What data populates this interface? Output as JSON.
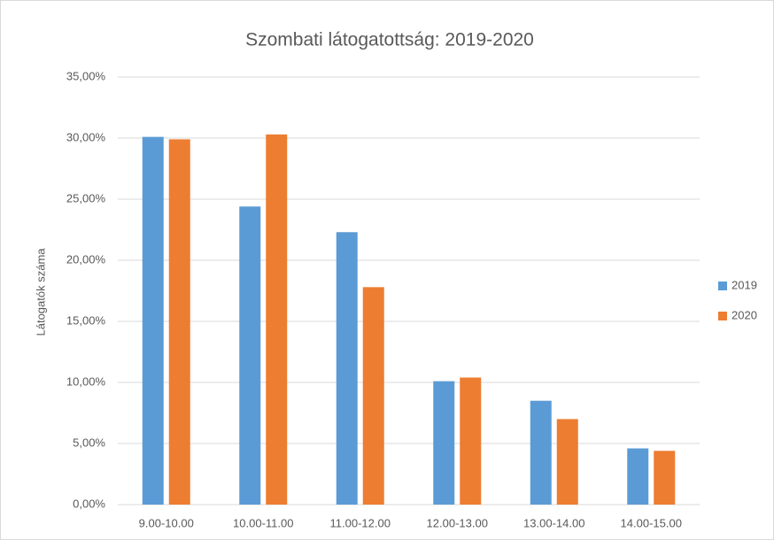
{
  "chart_data": {
    "type": "bar",
    "title": "Szombati látogatottság: 2019-2020",
    "y_label": "Látogatók száma",
    "categories": [
      "9.00-10.00",
      "10.00-11.00",
      "11.00-12.00",
      "12.00-13.00",
      "13.00-14.00",
      "14.00-15.00"
    ],
    "series": [
      {
        "name": "2019",
        "color": "#5b9bd5",
        "values": [
          30.1,
          24.4,
          22.3,
          10.1,
          8.5,
          4.6
        ]
      },
      {
        "name": "2020",
        "color": "#ed7d31",
        "values": [
          29.9,
          30.3,
          17.8,
          10.4,
          7.0,
          4.4
        ]
      }
    ],
    "ylim": [
      0,
      35
    ],
    "yticks": [
      {
        "value": 0,
        "label": "0,00%"
      },
      {
        "value": 5,
        "label": "5,00%"
      },
      {
        "value": 10,
        "label": "10,00%"
      },
      {
        "value": 15,
        "label": "15,00%"
      },
      {
        "value": 20,
        "label": "20,00%"
      },
      {
        "value": 25,
        "label": "25,00%"
      },
      {
        "value": 30,
        "label": "30,00%"
      },
      {
        "value": 35,
        "label": "35,00%"
      }
    ],
    "grid": true,
    "legend": "right"
  }
}
